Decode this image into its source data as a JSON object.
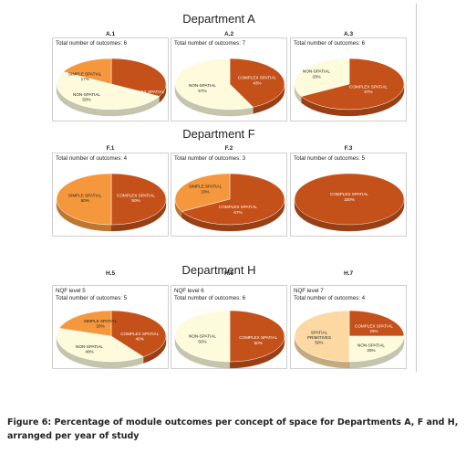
{
  "colors": {
    "complex": "#c4511a",
    "simple": "#f5973d",
    "nonspatial": "#fdfbdc",
    "primitives": "#fcd9a3"
  },
  "chart_data": [
    {
      "group": "Department A",
      "panel": "A.1",
      "type": "pie",
      "header": [
        "Total number of outcomes: 6"
      ],
      "slices": [
        {
          "label": "COMPLEX SPATIAL",
          "pct": "33%",
          "value": 33,
          "color": "complex"
        },
        {
          "label": "NON-SPATIAL",
          "pct": "50%",
          "value": 50,
          "color": "nonspatial"
        },
        {
          "label": "SIMPLE SPATIAL",
          "pct": "17%",
          "value": 17,
          "color": "simple"
        }
      ]
    },
    {
      "group": "Department A",
      "panel": "A.2",
      "type": "pie",
      "header": [
        "Total number of outcomes: 7"
      ],
      "slices": [
        {
          "label": "COMPLEX SPATIAL",
          "pct": "43%",
          "value": 43,
          "color": "complex"
        },
        {
          "label": "NON-SPATIAL",
          "pct": "57%",
          "value": 57,
          "color": "nonspatial"
        }
      ]
    },
    {
      "group": "Department A",
      "panel": "A.3",
      "type": "pie",
      "header": [
        "Total number of outcomes: 6"
      ],
      "slices": [
        {
          "label": "COMPLEX SPATIAL",
          "pct": "67%",
          "value": 67,
          "color": "complex"
        },
        {
          "label": "NON-SPATIAL",
          "pct": "33%",
          "value": 33,
          "color": "nonspatial"
        }
      ]
    },
    {
      "group": "Department F",
      "panel": "F.1",
      "type": "pie",
      "header": [
        "Total number of outcomes: 4"
      ],
      "slices": [
        {
          "label": "COMPLEX SPATIAL",
          "pct": "50%",
          "value": 50,
          "color": "complex"
        },
        {
          "label": "SIMPLE SPATIAL",
          "pct": "50%",
          "value": 50,
          "color": "simple"
        }
      ]
    },
    {
      "group": "Department F",
      "panel": "F.2",
      "type": "pie",
      "header": [
        "Total number of outcomes: 3"
      ],
      "slices": [
        {
          "label": "COMPLEX SPATIAL",
          "pct": "67%",
          "value": 67,
          "color": "complex"
        },
        {
          "label": "SIMPLE SPATIAL",
          "pct": "33%",
          "value": 33,
          "color": "simple"
        }
      ]
    },
    {
      "group": "Department F",
      "panel": "F.3",
      "type": "pie",
      "header": [
        "Total number of outcomes: 5"
      ],
      "slices": [
        {
          "label": "COMPLEX SPATIAL",
          "pct": "100%",
          "value": 100,
          "color": "complex"
        }
      ]
    },
    {
      "group": "Department H",
      "panel": "H.5",
      "type": "pie",
      "header": [
        "NQF level 5",
        "Total number of outcomes: 5"
      ],
      "slices": [
        {
          "label": "COMPLEX SPATIAL",
          "pct": "40%",
          "value": 40,
          "color": "complex"
        },
        {
          "label": "NON-SPATIAL",
          "pct": "40%",
          "value": 40,
          "color": "nonspatial"
        },
        {
          "label": "SIMPLE SPATIAL",
          "pct": "20%",
          "value": 20,
          "color": "simple"
        }
      ]
    },
    {
      "group": "Department H",
      "panel": "H.6",
      "type": "pie",
      "header": [
        "NQF level 6",
        "Total number of outcomes: 6"
      ],
      "slices": [
        {
          "label": "COMPLEX SPATIAL",
          "pct": "50%",
          "value": 50,
          "color": "complex"
        },
        {
          "label": "NON-SPATIAL",
          "pct": "50%",
          "value": 50,
          "color": "nonspatial"
        }
      ]
    },
    {
      "group": "Department H",
      "panel": "H.7",
      "type": "pie",
      "header": [
        "NQF level 7",
        "Total number of outcomes: 4"
      ],
      "slices": [
        {
          "label": "COMPLEX SPATIAL",
          "pct": "25%",
          "value": 25,
          "color": "complex"
        },
        {
          "label": "NON-SPATIAL",
          "pct": "25%",
          "value": 25,
          "color": "nonspatial"
        },
        {
          "label": "SPATIAL PRIMITIVES",
          "pct": "50%",
          "value": 50,
          "color": "primitives"
        }
      ]
    }
  ],
  "departments": [
    "Department A",
    "Department F",
    "Department H"
  ],
  "caption": {
    "line1": "Figure 6: Percentage of module outcomes per concept of space for Departments A, F and H,",
    "line2": "arranged per year of study"
  }
}
